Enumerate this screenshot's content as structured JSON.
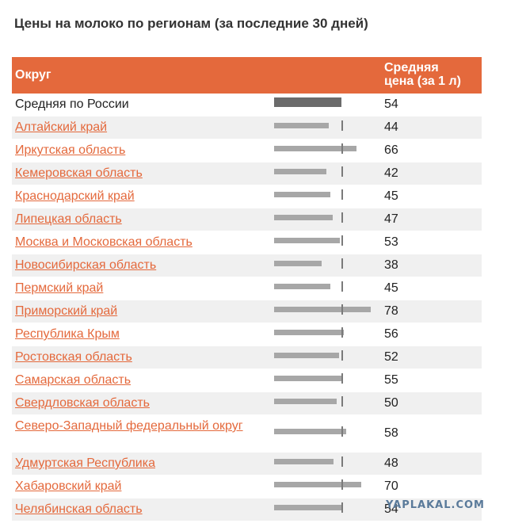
{
  "title": "Цены на молоко по регионам (за последние 30 дней)",
  "header": {
    "col1": "Округ",
    "col2_line1": "Средняя",
    "col2_line2": "цена (за 1 л)"
  },
  "watermark": "YAPLAKAL.COM",
  "chart_data": {
    "type": "bar",
    "title": "Цены на молоко по регионам (за последние 30 дней)",
    "xlabel": "Округ",
    "ylabel": "Средняя цена (за 1 л)",
    "reference": {
      "name": "Средняя по России",
      "value": 54
    },
    "categories": [
      "Средняя по России",
      "Алтайский край",
      "Иркутская область",
      "Кемеровская область",
      "Краснодарский край",
      "Липецкая область",
      "Москва и Московская область",
      "Новосибирская область",
      "Пермский край",
      "Приморский край",
      "Республика Крым",
      "Ростовская область",
      "Самарская область",
      "Свердловская область",
      "Северо-Западный федеральный округ",
      "Удмуртская Республика",
      "Хабаровский край",
      "Челябинская область"
    ],
    "values": [
      54,
      44,
      66,
      42,
      45,
      47,
      53,
      38,
      45,
      78,
      56,
      52,
      55,
      50,
      58,
      48,
      70,
      54
    ],
    "ylim": [
      0,
      80
    ]
  }
}
